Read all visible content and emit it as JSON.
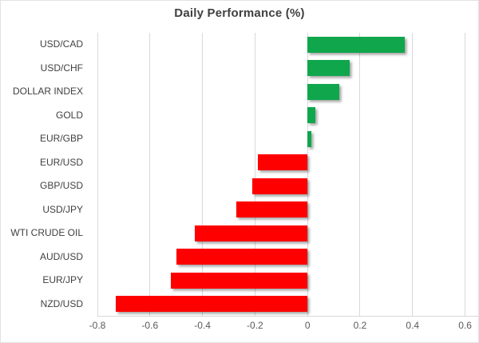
{
  "chart_data": {
    "type": "bar",
    "orientation": "horizontal",
    "title": "Daily Performance (%)",
    "categories": [
      "USD/CAD",
      "USD/CHF",
      "DOLLAR INDEX",
      "GOLD",
      "EUR/GBP",
      "EUR/USD",
      "GBP/USD",
      "USD/JPY",
      "WTI CRUDE OIL",
      "AUD/USD",
      "EUR/JPY",
      "NZD/USD"
    ],
    "values": [
      0.37,
      0.16,
      0.12,
      0.03,
      0.015,
      -0.19,
      -0.21,
      -0.27,
      -0.43,
      -0.5,
      -0.52,
      -0.73
    ],
    "xlabel": "",
    "ylabel": "",
    "xlim": [
      -0.8,
      0.65
    ],
    "xticks": [
      -0.8,
      -0.6,
      -0.4,
      -0.2,
      0,
      0.2,
      0.4,
      0.6
    ],
    "xtick_labels": [
      "-0.8",
      "-0.6",
      "-0.4",
      "-0.2",
      "0",
      "0.2",
      "0.4",
      "0.6"
    ],
    "grid": true,
    "legend": false,
    "colors": {
      "positive": "#0FA64C",
      "negative": "#FE0000",
      "gridline": "#D9D9D9",
      "title_text": "#404040",
      "category_text": "#404040",
      "tick_text": "#595959",
      "background": "#FFFFFF"
    }
  }
}
